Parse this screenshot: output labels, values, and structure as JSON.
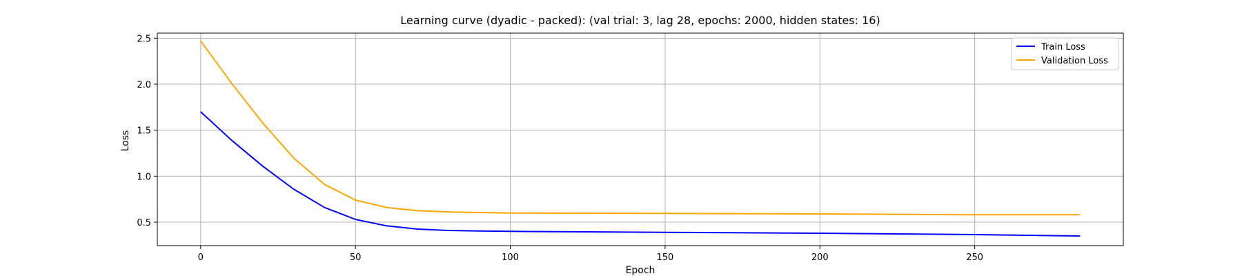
{
  "chart_data": {
    "type": "line",
    "title": "Learning curve (dyadic - packed): (val trial: 3, lag 28, epochs: 2000, hidden states: 16)",
    "xlabel": "Epoch",
    "ylabel": "Loss",
    "xlim": [
      -14,
      298
    ],
    "ylim": [
      0.245,
      2.555
    ],
    "xticks": [
      0,
      50,
      100,
      150,
      200,
      250
    ],
    "yticks": [
      0.5,
      1.0,
      1.5,
      2.0,
      2.5
    ],
    "xtick_labels": [
      "0",
      "50",
      "100",
      "150",
      "200",
      "250"
    ],
    "ytick_labels": [
      "0.5",
      "1.0",
      "1.5",
      "2.0",
      "2.5"
    ],
    "grid": true,
    "legend_position": "top-right",
    "series": [
      {
        "name": "Train Loss",
        "color": "#0000ff",
        "x": [
          0,
          10,
          20,
          30,
          40,
          50,
          60,
          70,
          80,
          90,
          100,
          150,
          200,
          250,
          284
        ],
        "y": [
          1.7,
          1.39,
          1.11,
          0.86,
          0.66,
          0.53,
          0.46,
          0.425,
          0.41,
          0.405,
          0.4,
          0.39,
          0.38,
          0.365,
          0.35
        ]
      },
      {
        "name": "Validation Loss",
        "color": "#ffa500",
        "x": [
          0,
          10,
          20,
          30,
          40,
          50,
          60,
          70,
          80,
          90,
          100,
          150,
          200,
          250,
          284
        ],
        "y": [
          2.47,
          2.01,
          1.58,
          1.2,
          0.91,
          0.74,
          0.66,
          0.625,
          0.61,
          0.605,
          0.6,
          0.595,
          0.59,
          0.58,
          0.58
        ]
      }
    ]
  }
}
